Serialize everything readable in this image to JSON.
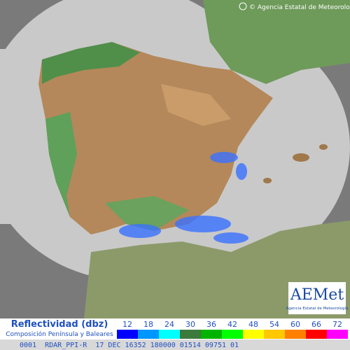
{
  "header": {
    "copyright": "© Agencia Estatal de Meteorología"
  },
  "logo": {
    "name": "AEMet",
    "subtitle": "Agencia Estatal de Meteorología"
  },
  "legend": {
    "title": "Reflectividad (dbz)",
    "subtitle": "Composición Península y Baleares",
    "levels": [
      {
        "value": 12,
        "color": "#0000fe"
      },
      {
        "value": 18,
        "color": "#0096ff"
      },
      {
        "value": 24,
        "color": "#00ffff"
      },
      {
        "value": 30,
        "color": "#3c7a3c"
      },
      {
        "value": 36,
        "color": "#00b400"
      },
      {
        "value": 42,
        "color": "#00ff00"
      },
      {
        "value": 48,
        "color": "#ffff00"
      },
      {
        "value": 54,
        "color": "#ffc800"
      },
      {
        "value": 60,
        "color": "#ff8000"
      },
      {
        "value": 66,
        "color": "#ff0000"
      },
      {
        "value": 72,
        "color": "#ff00ff"
      }
    ]
  },
  "footer": {
    "status": "0001  RDAR_PPI-R  17 DEC 16352 180000 01514 09751 01"
  }
}
